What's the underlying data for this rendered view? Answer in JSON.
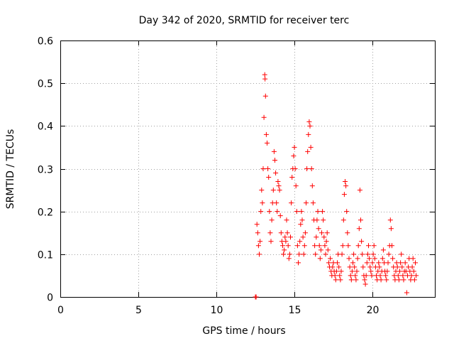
{
  "chart_data": {
    "type": "scatter",
    "title": "Day 342 of 2020, SRMTID for receiver terc",
    "xlabel": "GPS time / hours",
    "ylabel": "SRMTID / TECUs",
    "xlim": [
      0,
      24
    ],
    "ylim": [
      0,
      0.6
    ],
    "xticks": [
      0,
      5,
      10,
      15,
      20
    ],
    "xtick_labels": [
      "0",
      "5",
      "10",
      "15",
      "20"
    ],
    "yticks": [
      0,
      0.1,
      0.2,
      0.3,
      0.4,
      0.5,
      0.6
    ],
    "ytick_labels": [
      "0",
      "0.1",
      "0.2",
      "0.3",
      "0.4",
      "0.5",
      "0.6"
    ],
    "grid": true,
    "marker": "plus",
    "series": [
      {
        "name": "SRMTID",
        "color": "#ff0000",
        "points": [
          [
            12.5,
            0.0
          ],
          [
            12.55,
            0.0
          ],
          [
            12.6,
            0.17
          ],
          [
            12.65,
            0.15
          ],
          [
            12.7,
            0.12
          ],
          [
            12.75,
            0.1
          ],
          [
            12.8,
            0.13
          ],
          [
            12.85,
            0.2
          ],
          [
            12.9,
            0.25
          ],
          [
            12.95,
            0.22
          ],
          [
            13.0,
            0.3
          ],
          [
            13.05,
            0.42
          ],
          [
            13.1,
            0.52
          ],
          [
            13.12,
            0.51
          ],
          [
            13.15,
            0.47
          ],
          [
            13.2,
            0.38
          ],
          [
            13.25,
            0.36
          ],
          [
            13.3,
            0.3
          ],
          [
            13.35,
            0.28
          ],
          [
            13.4,
            0.2
          ],
          [
            13.45,
            0.15
          ],
          [
            13.5,
            0.13
          ],
          [
            13.55,
            0.18
          ],
          [
            13.6,
            0.22
          ],
          [
            13.65,
            0.25
          ],
          [
            13.7,
            0.34
          ],
          [
            13.75,
            0.32
          ],
          [
            13.8,
            0.29
          ],
          [
            13.85,
            0.22
          ],
          [
            13.9,
            0.2
          ],
          [
            13.95,
            0.27
          ],
          [
            14.0,
            0.26
          ],
          [
            14.05,
            0.25
          ],
          [
            14.1,
            0.19
          ],
          [
            14.15,
            0.15
          ],
          [
            14.2,
            0.13
          ],
          [
            14.25,
            0.12
          ],
          [
            14.3,
            0.1
          ],
          [
            14.35,
            0.11
          ],
          [
            14.4,
            0.14
          ],
          [
            14.45,
            0.13
          ],
          [
            14.5,
            0.18
          ],
          [
            14.55,
            0.15
          ],
          [
            14.6,
            0.12
          ],
          [
            14.65,
            0.09
          ],
          [
            14.7,
            0.1
          ],
          [
            14.75,
            0.14
          ],
          [
            14.8,
            0.22
          ],
          [
            14.85,
            0.28
          ],
          [
            14.9,
            0.3
          ],
          [
            14.95,
            0.33
          ],
          [
            15.0,
            0.35
          ],
          [
            15.05,
            0.3
          ],
          [
            15.1,
            0.26
          ],
          [
            15.15,
            0.2
          ],
          [
            15.2,
            0.12
          ],
          [
            15.25,
            0.08
          ],
          [
            15.3,
            0.1
          ],
          [
            15.35,
            0.13
          ],
          [
            15.4,
            0.17
          ],
          [
            15.45,
            0.2
          ],
          [
            15.5,
            0.18
          ],
          [
            15.55,
            0.14
          ],
          [
            15.6,
            0.1
          ],
          [
            15.65,
            0.12
          ],
          [
            15.7,
            0.15
          ],
          [
            15.75,
            0.22
          ],
          [
            15.8,
            0.3
          ],
          [
            15.85,
            0.34
          ],
          [
            15.9,
            0.38
          ],
          [
            15.95,
            0.41
          ],
          [
            16.0,
            0.4
          ],
          [
            16.05,
            0.35
          ],
          [
            16.1,
            0.3
          ],
          [
            16.15,
            0.26
          ],
          [
            16.2,
            0.22
          ],
          [
            16.25,
            0.18
          ],
          [
            16.3,
            0.12
          ],
          [
            16.35,
            0.1
          ],
          [
            16.4,
            0.14
          ],
          [
            16.45,
            0.18
          ],
          [
            16.5,
            0.2
          ],
          [
            16.55,
            0.16
          ],
          [
            16.6,
            0.12
          ],
          [
            16.65,
            0.09
          ],
          [
            16.7,
            0.11
          ],
          [
            16.75,
            0.15
          ],
          [
            16.8,
            0.2
          ],
          [
            16.85,
            0.18
          ],
          [
            16.9,
            0.14
          ],
          [
            16.95,
            0.12
          ],
          [
            17.0,
            0.1
          ],
          [
            17.05,
            0.13
          ],
          [
            17.1,
            0.15
          ],
          [
            17.15,
            0.11
          ],
          [
            17.2,
            0.08
          ],
          [
            17.25,
            0.07
          ],
          [
            17.3,
            0.09
          ],
          [
            17.35,
            0.06
          ],
          [
            17.4,
            0.05
          ],
          [
            17.45,
            0.07
          ],
          [
            17.5,
            0.08
          ],
          [
            17.55,
            0.06
          ],
          [
            17.6,
            0.05
          ],
          [
            17.65,
            0.04
          ],
          [
            17.7,
            0.06
          ],
          [
            17.75,
            0.08
          ],
          [
            17.8,
            0.1
          ],
          [
            17.85,
            0.07
          ],
          [
            17.9,
            0.05
          ],
          [
            17.95,
            0.04
          ],
          [
            18.0,
            0.06
          ],
          [
            18.05,
            0.1
          ],
          [
            18.1,
            0.12
          ],
          [
            18.15,
            0.18
          ],
          [
            18.2,
            0.24
          ],
          [
            18.25,
            0.27
          ],
          [
            18.3,
            0.26
          ],
          [
            18.35,
            0.2
          ],
          [
            18.4,
            0.15
          ],
          [
            18.45,
            0.12
          ],
          [
            18.5,
            0.09
          ],
          [
            18.55,
            0.07
          ],
          [
            18.6,
            0.05
          ],
          [
            18.65,
            0.04
          ],
          [
            18.7,
            0.06
          ],
          [
            18.75,
            0.08
          ],
          [
            18.8,
            0.1
          ],
          [
            18.85,
            0.07
          ],
          [
            18.9,
            0.05
          ],
          [
            18.95,
            0.04
          ],
          [
            19.0,
            0.06
          ],
          [
            19.05,
            0.09
          ],
          [
            19.1,
            0.12
          ],
          [
            19.15,
            0.16
          ],
          [
            19.2,
            0.25
          ],
          [
            19.25,
            0.18
          ],
          [
            19.3,
            0.13
          ],
          [
            19.35,
            0.1
          ],
          [
            19.4,
            0.07
          ],
          [
            19.45,
            0.05
          ],
          [
            19.5,
            0.04
          ],
          [
            19.55,
            0.03
          ],
          [
            19.6,
            0.05
          ],
          [
            19.65,
            0.08
          ],
          [
            19.7,
            0.1
          ],
          [
            19.75,
            0.12
          ],
          [
            19.8,
            0.09
          ],
          [
            19.85,
            0.07
          ],
          [
            19.9,
            0.06
          ],
          [
            19.95,
            0.05
          ],
          [
            20.0,
            0.08
          ],
          [
            20.05,
            0.1
          ],
          [
            20.1,
            0.12
          ],
          [
            20.15,
            0.09
          ],
          [
            20.2,
            0.07
          ],
          [
            20.25,
            0.05
          ],
          [
            20.3,
            0.04
          ],
          [
            20.35,
            0.06
          ],
          [
            20.4,
            0.08
          ],
          [
            20.45,
            0.07
          ],
          [
            20.5,
            0.05
          ],
          [
            20.55,
            0.04
          ],
          [
            20.6,
            0.06
          ],
          [
            20.65,
            0.09
          ],
          [
            20.7,
            0.11
          ],
          [
            20.75,
            0.08
          ],
          [
            20.8,
            0.06
          ],
          [
            20.85,
            0.05
          ],
          [
            20.9,
            0.04
          ],
          [
            20.95,
            0.06
          ],
          [
            21.0,
            0.08
          ],
          [
            21.05,
            0.1
          ],
          [
            21.1,
            0.12
          ],
          [
            21.15,
            0.18
          ],
          [
            21.2,
            0.16
          ],
          [
            21.25,
            0.12
          ],
          [
            21.3,
            0.09
          ],
          [
            21.35,
            0.07
          ],
          [
            21.4,
            0.05
          ],
          [
            21.45,
            0.04
          ],
          [
            21.5,
            0.06
          ],
          [
            21.55,
            0.08
          ],
          [
            21.6,
            0.07
          ],
          [
            21.65,
            0.05
          ],
          [
            21.7,
            0.04
          ],
          [
            21.75,
            0.06
          ],
          [
            21.8,
            0.08
          ],
          [
            21.85,
            0.1
          ],
          [
            21.9,
            0.07
          ],
          [
            21.95,
            0.05
          ],
          [
            22.0,
            0.04
          ],
          [
            22.05,
            0.06
          ],
          [
            22.1,
            0.08
          ],
          [
            22.15,
            0.06
          ],
          [
            22.2,
            0.01
          ],
          [
            22.25,
            0.05
          ],
          [
            22.3,
            0.07
          ],
          [
            22.35,
            0.09
          ],
          [
            22.4,
            0.06
          ],
          [
            22.45,
            0.04
          ],
          [
            22.5,
            0.05
          ],
          [
            22.55,
            0.07
          ],
          [
            22.6,
            0.09
          ],
          [
            22.65,
            0.06
          ],
          [
            22.7,
            0.04
          ],
          [
            22.75,
            0.08
          ],
          [
            22.8,
            0.05
          ]
        ]
      }
    ]
  }
}
